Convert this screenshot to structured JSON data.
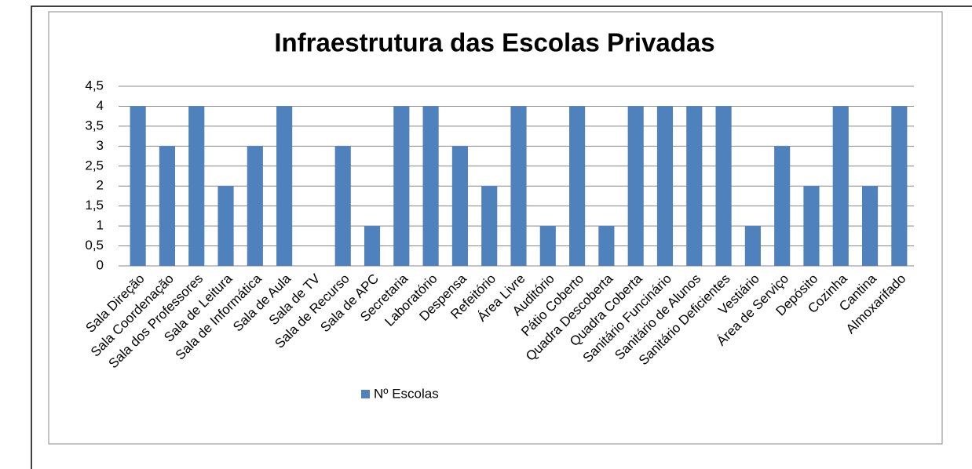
{
  "chart_data": {
    "type": "bar",
    "title": "Infraestrutura das Escolas Privadas",
    "categories": [
      "Sala Direção",
      "Sala Coordenação",
      "Sala dos Professores",
      "Sala de Leitura",
      "Sala de Informática",
      "Sala de Aula",
      "Sala de TV",
      "Sala de Recurso",
      "Sala de APC",
      "Secretaria",
      "Laboratório",
      "Despensa",
      "Refeitório",
      "Área Livre",
      "Auditório",
      "Pátio Coberto",
      "Quadra Descoberta",
      "Quadra Coberta",
      "Sanitário  Funcinário",
      "Sanitário  de Alunos",
      "Sanitário Deficientes",
      "Vestiário",
      "Área de Serviço",
      "Depósito",
      "Cozinha",
      "Cantina",
      "Almoxarifado"
    ],
    "series": [
      {
        "name": "Nº Escolas",
        "color": "#4f81bd",
        "values": [
          4,
          3,
          4,
          2,
          3,
          4,
          0,
          3,
          1,
          4,
          4,
          3,
          2,
          4,
          1,
          4,
          1,
          4,
          4,
          4,
          4,
          1,
          3,
          2,
          4,
          2,
          4
        ]
      }
    ],
    "ylim": [
      0,
      4.5
    ],
    "yticks": [
      0,
      {
        "value": 0.5,
        "label": "0,5"
      },
      1,
      {
        "value": 1.5,
        "label": "1,5"
      },
      2,
      {
        "value": 2.5,
        "label": "2,5"
      },
      3,
      {
        "value": 3.5,
        "label": "3,5"
      },
      4,
      {
        "value": 4.5,
        "label": "4,5"
      }
    ],
    "grid": true,
    "legend": "bottom"
  }
}
